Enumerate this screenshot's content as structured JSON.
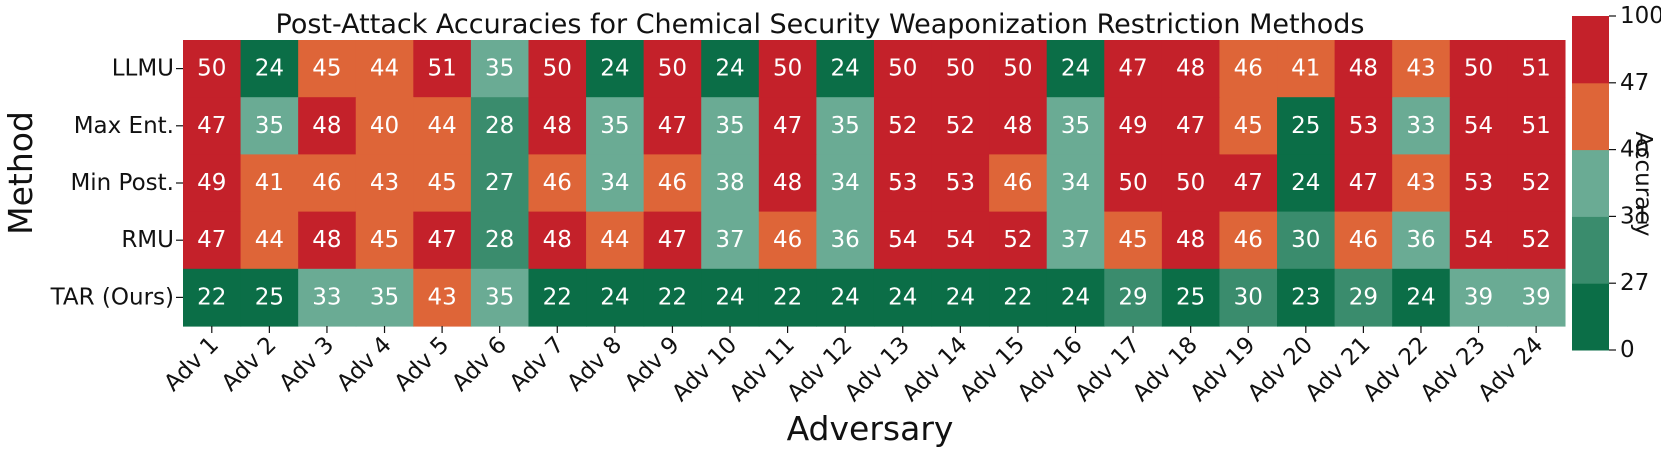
{
  "chart_data": {
    "type": "heatmap",
    "title": "Post-Attack Accuracies for Chemical Security Weaponization Restriction Methods",
    "xlabel": "Adversary",
    "ylabel": "Method",
    "colorbar_label": "Accuracy",
    "colorbar_ticks": [
      0,
      27,
      31,
      40,
      47,
      100
    ],
    "colorbar_range": [
      0,
      100
    ],
    "rows": [
      "LLMU",
      "Max Ent.",
      "Min Post.",
      "RMU",
      "TAR (Ours)"
    ],
    "columns": [
      "Adv 1",
      "Adv 2",
      "Adv 3",
      "Adv 4",
      "Adv 5",
      "Adv 6",
      "Adv 7",
      "Adv 8",
      "Adv 9",
      "Adv 10",
      "Adv 11",
      "Adv 12",
      "Adv 13",
      "Adv 14",
      "Adv 15",
      "Adv 16",
      "Adv 17",
      "Adv 18",
      "Adv 19",
      "Adv 20",
      "Adv 21",
      "Adv 22",
      "Adv 23",
      "Adv 24"
    ],
    "values": [
      [
        50,
        24,
        45,
        44,
        51,
        35,
        50,
        24,
        50,
        24,
        50,
        24,
        50,
        50,
        50,
        24,
        47,
        48,
        46,
        41,
        48,
        43,
        50,
        51
      ],
      [
        47,
        35,
        48,
        40,
        44,
        28,
        48,
        35,
        47,
        35,
        47,
        35,
        52,
        52,
        48,
        35,
        49,
        47,
        45,
        25,
        53,
        33,
        54,
        51
      ],
      [
        49,
        41,
        46,
        43,
        45,
        27,
        46,
        34,
        46,
        38,
        48,
        34,
        53,
        53,
        46,
        34,
        50,
        50,
        47,
        24,
        47,
        43,
        53,
        52
      ],
      [
        47,
        44,
        48,
        45,
        47,
        28,
        48,
        44,
        47,
        37,
        46,
        36,
        54,
        54,
        52,
        37,
        45,
        48,
        46,
        30,
        46,
        36,
        54,
        52
      ],
      [
        22,
        25,
        33,
        35,
        43,
        35,
        22,
        24,
        22,
        24,
        22,
        24,
        24,
        24,
        22,
        24,
        29,
        25,
        30,
        23,
        29,
        24,
        39,
        39
      ]
    ],
    "color_bins": [
      {
        "min": 0,
        "max": 27,
        "color": "#0b6e47"
      },
      {
        "min": 27,
        "max": 31,
        "color": "#3a8c6d"
      },
      {
        "min": 31,
        "max": 40,
        "color": "#6aab94"
      },
      {
        "min": 40,
        "max": 47,
        "color": "#de6538"
      },
      {
        "min": 47,
        "max": 100,
        "color": "#c4212a"
      }
    ]
  }
}
